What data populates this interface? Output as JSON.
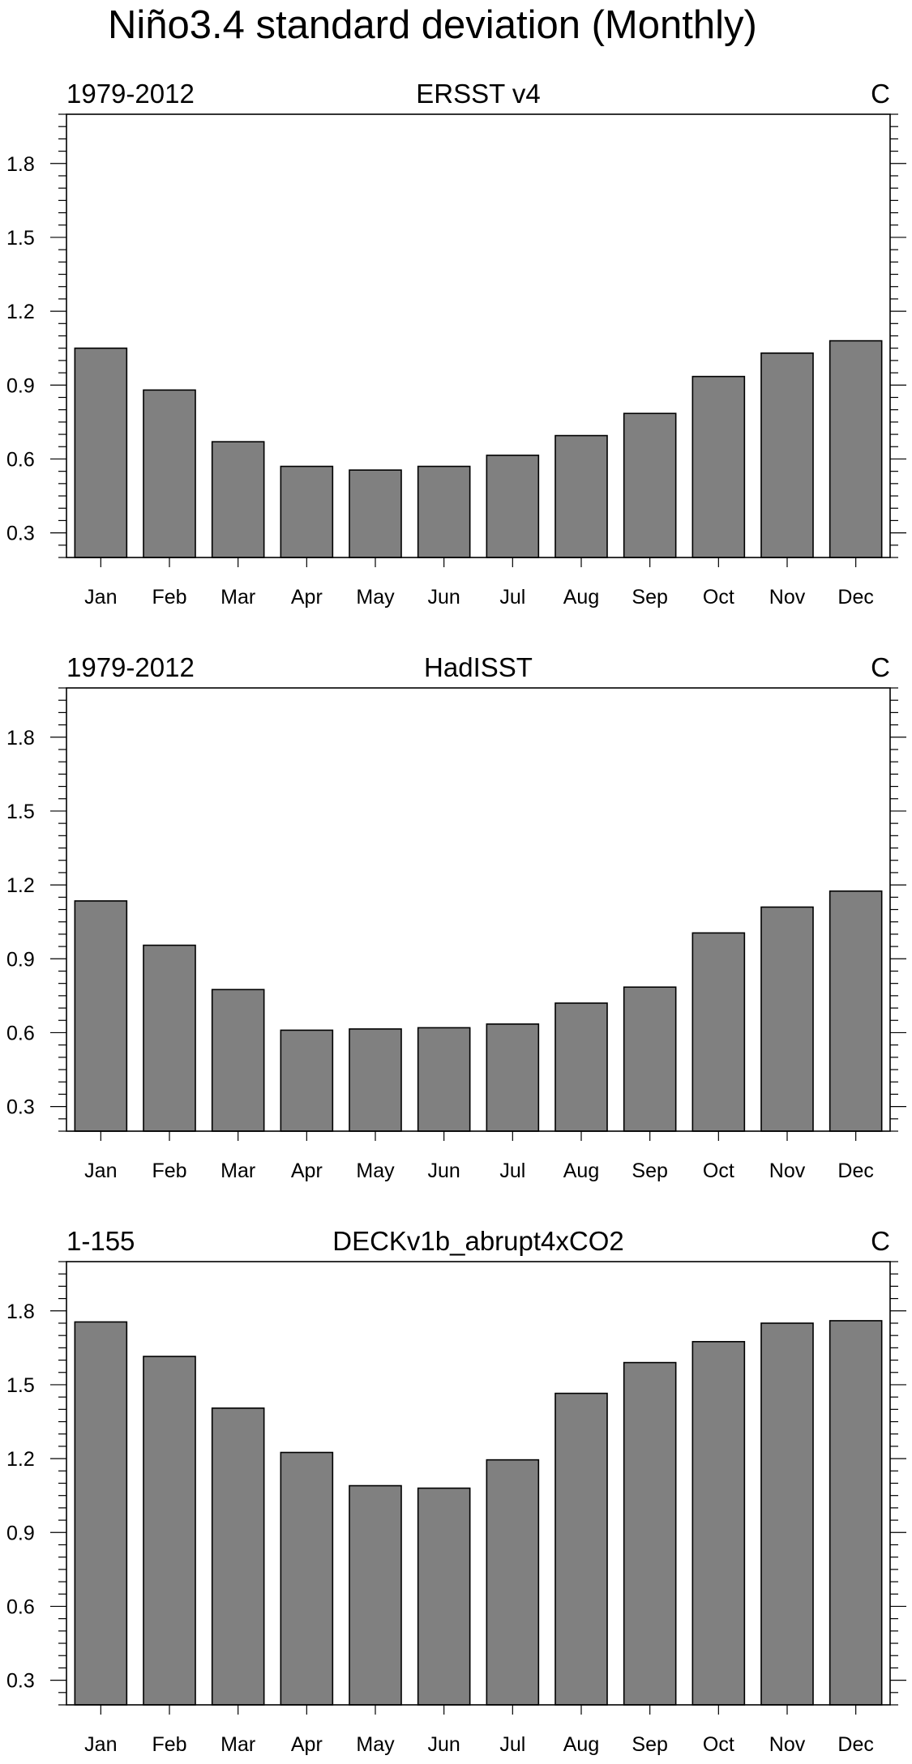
{
  "title": "Niño3.4 standard deviation (Monthly)",
  "chart_data": [
    {
      "type": "bar",
      "left_label": "1979-2012",
      "title": "ERSST v4",
      "units": "C",
      "categories": [
        "Jan",
        "Feb",
        "Mar",
        "Apr",
        "May",
        "Jun",
        "Jul",
        "Aug",
        "Sep",
        "Oct",
        "Nov",
        "Dec"
      ],
      "values": [
        1.05,
        0.88,
        0.67,
        0.57,
        0.555,
        0.57,
        0.615,
        0.695,
        0.785,
        0.935,
        1.03,
        1.08
      ],
      "ylim": [
        0.2,
        2.0
      ],
      "yticks": [
        0.3,
        0.6,
        0.9,
        1.2,
        1.5,
        1.8
      ],
      "ytick_labels": [
        "0.3",
        "0.6",
        "0.9",
        "1.2",
        "1.5",
        "1.8"
      ]
    },
    {
      "type": "bar",
      "left_label": "1979-2012",
      "title": "HadISST",
      "units": "C",
      "categories": [
        "Jan",
        "Feb",
        "Mar",
        "Apr",
        "May",
        "Jun",
        "Jul",
        "Aug",
        "Sep",
        "Oct",
        "Nov",
        "Dec"
      ],
      "values": [
        1.135,
        0.955,
        0.775,
        0.61,
        0.615,
        0.62,
        0.635,
        0.72,
        0.785,
        1.005,
        1.11,
        1.175
      ],
      "ylim": [
        0.2,
        2.0
      ],
      "yticks": [
        0.3,
        0.6,
        0.9,
        1.2,
        1.5,
        1.8
      ],
      "ytick_labels": [
        "0.3",
        "0.6",
        "0.9",
        "1.2",
        "1.5",
        "1.8"
      ]
    },
    {
      "type": "bar",
      "left_label": "1-155",
      "title": "DECKv1b_abrupt4xCO2",
      "units": "C",
      "categories": [
        "Jan",
        "Feb",
        "Mar",
        "Apr",
        "May",
        "Jun",
        "Jul",
        "Aug",
        "Sep",
        "Oct",
        "Nov",
        "Dec"
      ],
      "values": [
        1.755,
        1.615,
        1.405,
        1.225,
        1.09,
        1.08,
        1.195,
        1.465,
        1.59,
        1.675,
        1.75,
        1.76
      ],
      "ylim": [
        0.2,
        2.0
      ],
      "yticks": [
        0.3,
        0.6,
        0.9,
        1.2,
        1.5,
        1.8
      ],
      "ytick_labels": [
        "0.3",
        "0.6",
        "0.9",
        "1.2",
        "1.5",
        "1.8"
      ]
    }
  ]
}
